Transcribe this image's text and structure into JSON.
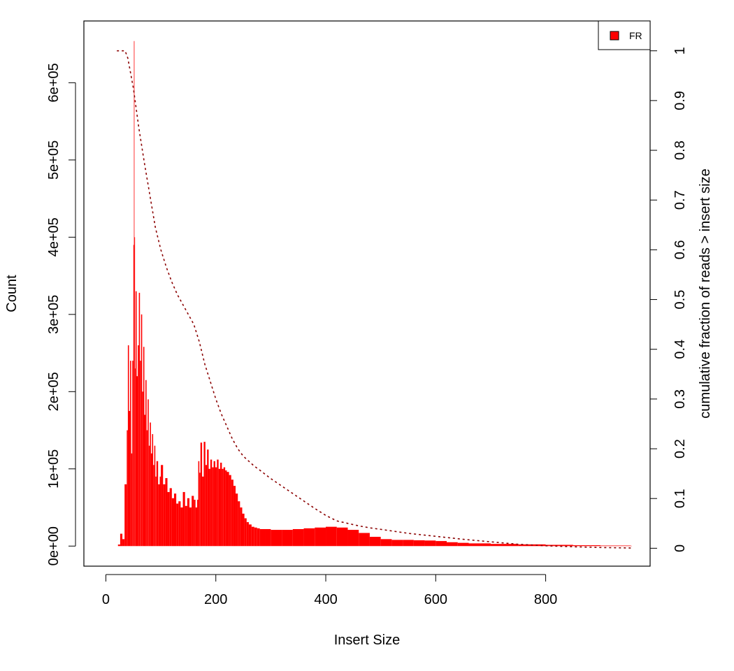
{
  "chart_data": {
    "type": "area",
    "title": "",
    "xlabel": "Insert Size",
    "ylabel": "Count",
    "ylabel_right": "cumulative fraction of reads > insert size",
    "xlim": [
      -40,
      990
    ],
    "ylim": [
      -26000,
      680000
    ],
    "ylim_right": [
      -0.036,
      1.06
    ],
    "grid": false,
    "legend": {
      "position": "top-right",
      "entries": [
        {
          "label": "FR",
          "color": "#ff0000"
        }
      ]
    },
    "x_ticks": [
      0,
      200,
      400,
      600,
      800
    ],
    "x_tick_labels": [
      "0",
      "200",
      "400",
      "600",
      "800"
    ],
    "y_ticks": [
      0,
      100000,
      200000,
      300000,
      400000,
      500000,
      600000
    ],
    "y_tick_labels": [
      "0e+00",
      "1e+05",
      "2e+05",
      "3e+05",
      "4e+05",
      "5e+05",
      "6e+05"
    ],
    "y2_ticks": [
      0,
      0.1,
      0.2,
      0.3,
      0.4,
      0.5,
      0.6,
      0.7,
      0.8,
      0.9,
      1
    ],
    "y2_tick_labels": [
      "0",
      "0.1",
      "0.2",
      "0.3",
      "0.4",
      "0.5",
      "0.6",
      "0.7",
      "0.8",
      "0.9",
      "1"
    ],
    "series": [
      {
        "name": "FR",
        "type": "histogram",
        "color": "#ff0000",
        "x": [
          22,
          26,
          30,
          34,
          38,
          40,
          42,
          44,
          46,
          48,
          50,
          51,
          52,
          53,
          54,
          56,
          58,
          60,
          62,
          64,
          66,
          68,
          70,
          72,
          74,
          76,
          78,
          80,
          82,
          84,
          86,
          88,
          90,
          92,
          95,
          98,
          100,
          104,
          108,
          112,
          116,
          120,
          124,
          128,
          132,
          136,
          140,
          144,
          148,
          152,
          156,
          160,
          163,
          166,
          168,
          170,
          172,
          175,
          178,
          181,
          184,
          187,
          190,
          193,
          196,
          199,
          202,
          205,
          208,
          211,
          214,
          217,
          220,
          224,
          228,
          232,
          236,
          240,
          244,
          248,
          252,
          256,
          260,
          265,
          270,
          275,
          280,
          290,
          300,
          320,
          340,
          360,
          380,
          400,
          420,
          440,
          460,
          480,
          500,
          520,
          540,
          560,
          580,
          600,
          620,
          640,
          660,
          700,
          750,
          800,
          850,
          900,
          955
        ],
        "y": [
          2000,
          16000,
          9000,
          80000,
          150000,
          260000,
          175000,
          240000,
          120000,
          240000,
          390000,
          654000,
          400000,
          230000,
          330000,
          220000,
          260000,
          328000,
          240000,
          300000,
          200000,
          258000,
          170000,
          215000,
          150000,
          190000,
          130000,
          160000,
          120000,
          145000,
          105000,
          130000,
          90000,
          110000,
          80000,
          90000,
          105000,
          80000,
          88000,
          70000,
          75000,
          62000,
          68000,
          55000,
          58000,
          50000,
          70000,
          52000,
          62000,
          50000,
          65000,
          60000,
          50000,
          60000,
          110000,
          95000,
          134000,
          90000,
          135000,
          105000,
          125000,
          100000,
          112000,
          102000,
          110000,
          102000,
          112000,
          100000,
          108000,
          100000,
          102000,
          98000,
          96000,
          92000,
          86000,
          78000,
          68000,
          58000,
          50000,
          42000,
          36000,
          31000,
          28000,
          25000,
          24000,
          23000,
          22000,
          22000,
          21000,
          21000,
          22000,
          23000,
          24000,
          25000,
          24000,
          21000,
          17000,
          12000,
          9000,
          8000,
          8000,
          7500,
          7200,
          6500,
          5000,
          4200,
          3500,
          2800,
          2200,
          1600,
          1100,
          700,
          300
        ]
      },
      {
        "name": "cumulative",
        "type": "line",
        "axis": "right",
        "color": "#8b0000",
        "x": [
          20,
          35,
          40,
          45,
          50,
          55,
          60,
          70,
          80,
          90,
          100,
          110,
          120,
          130,
          140,
          150,
          160,
          170,
          180,
          190,
          200,
          210,
          220,
          230,
          240,
          250,
          260,
          270,
          280,
          300,
          320,
          340,
          360,
          380,
          400,
          420,
          440,
          460,
          480,
          500,
          550,
          600,
          650,
          700,
          750,
          800,
          850,
          900,
          955
        ],
        "y": [
          1.0,
          1.0,
          0.985,
          0.955,
          0.925,
          0.885,
          0.845,
          0.775,
          0.71,
          0.645,
          0.6,
          0.565,
          0.535,
          0.51,
          0.49,
          0.47,
          0.45,
          0.415,
          0.37,
          0.335,
          0.3,
          0.27,
          0.245,
          0.22,
          0.2,
          0.185,
          0.175,
          0.165,
          0.157,
          0.14,
          0.125,
          0.11,
          0.095,
          0.08,
          0.066,
          0.055,
          0.05,
          0.045,
          0.041,
          0.038,
          0.03,
          0.024,
          0.018,
          0.013,
          0.008,
          0.005,
          0.003,
          0.0015,
          0.0005
        ]
      }
    ]
  }
}
